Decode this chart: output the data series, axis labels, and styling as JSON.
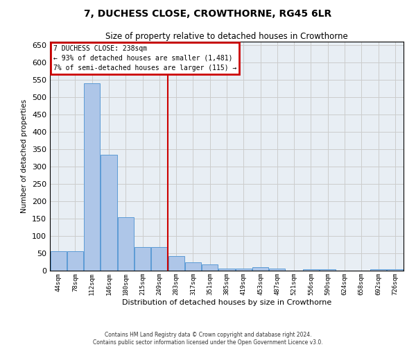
{
  "title": "7, DUCHESS CLOSE, CROWTHORNE, RG45 6LR",
  "subtitle": "Size of property relative to detached houses in Crowthorne",
  "xlabel": "Distribution of detached houses by size in Crowthorne",
  "ylabel": "Number of detached properties",
  "categories": [
    "44sqm",
    "78sqm",
    "112sqm",
    "146sqm",
    "180sqm",
    "215sqm",
    "249sqm",
    "283sqm",
    "317sqm",
    "351sqm",
    "385sqm",
    "419sqm",
    "453sqm",
    "487sqm",
    "521sqm",
    "556sqm",
    "590sqm",
    "624sqm",
    "658sqm",
    "692sqm",
    "726sqm"
  ],
  "values": [
    57,
    57,
    540,
    335,
    155,
    68,
    68,
    42,
    25,
    18,
    7,
    7,
    10,
    7,
    0,
    5,
    5,
    0,
    0,
    5,
    5
  ],
  "bar_color": "#aec6e8",
  "bar_edge_color": "#5b9bd5",
  "grid_color": "#cccccc",
  "background_color": "#e8eef4",
  "vline_x": 6.5,
  "vline_color": "#cc0000",
  "annotation_line1": "7 DUCHESS CLOSE: 238sqm",
  "annotation_line2": "← 93% of detached houses are smaller (1,481)",
  "annotation_line3": "7% of semi-detached houses are larger (115) →",
  "annotation_box_color": "#cc0000",
  "ylim": [
    0,
    660
  ],
  "yticks": [
    0,
    50,
    100,
    150,
    200,
    250,
    300,
    350,
    400,
    450,
    500,
    550,
    600,
    650
  ],
  "footer_line1": "Contains HM Land Registry data © Crown copyright and database right 2024.",
  "footer_line2": "Contains public sector information licensed under the Open Government Licence v3.0."
}
